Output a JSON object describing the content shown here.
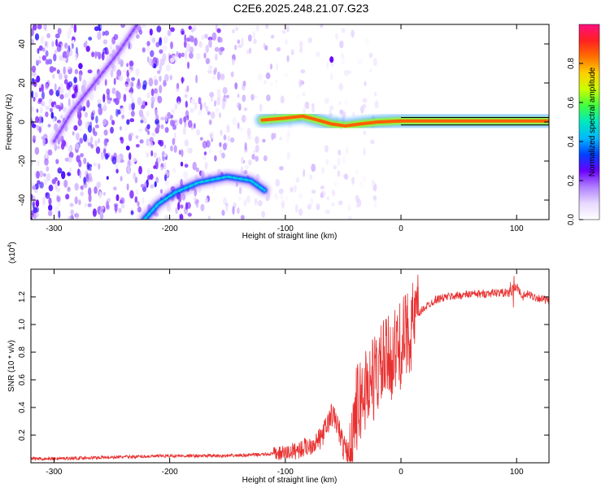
{
  "title": "C2E6.2025.248.21.07.G23",
  "chart_data": [
    {
      "type": "heatmap",
      "xlabel": "Height of straight line (km)",
      "ylabel": "Frequency (Hz)",
      "xlim": [
        -320,
        128
      ],
      "ylim": [
        -50,
        50
      ],
      "x_ticks": [
        -300,
        -200,
        -100,
        0,
        100
      ],
      "y_ticks": [
        -40,
        -20,
        0,
        20,
        40
      ],
      "colorbar": {
        "label": "Normalized spectral amplitude",
        "range": [
          0,
          1
        ],
        "ticks": [
          0.0,
          0.2,
          0.4,
          0.6,
          0.8
        ],
        "colormap": [
          "#ffffff",
          "#e8d8ff",
          "#b080ff",
          "#6a00ff",
          "#0040ff",
          "#00b8ff",
          "#00e8c0",
          "#40ff40",
          "#c8ff00",
          "#ffd000",
          "#ff7000",
          "#ff2020",
          "#ff1080"
        ]
      },
      "features": [
        {
          "kind": "ridge",
          "points": [
            [
              -228,
              50
            ],
            [
              -245,
              35
            ],
            [
              -265,
              20
            ],
            [
              -285,
              5
            ],
            [
              -300,
              -10
            ]
          ],
          "amplitude": 0.2
        },
        {
          "kind": "ridge",
          "points": [
            [
              -222,
              -50
            ],
            [
              -210,
              -42
            ],
            [
              -195,
              -36
            ],
            [
              -175,
              -31
            ],
            [
              -150,
              -28
            ],
            [
              -130,
              -30
            ],
            [
              -118,
              -35
            ]
          ],
          "amplitude": 0.45
        },
        {
          "kind": "ridge",
          "points": [
            [
              -120,
              1
            ],
            [
              -100,
              2
            ],
            [
              -85,
              3
            ],
            [
              -75,
              1.5
            ],
            [
              -60,
              -1
            ],
            [
              -48,
              -2
            ],
            [
              -35,
              -1
            ],
            [
              -20,
              0
            ],
            [
              0,
              0.5
            ],
            [
              128,
              0.5
            ]
          ],
          "amplitude": 0.85
        },
        {
          "kind": "spot",
          "points": [
            [
              -60,
              32
            ]
          ],
          "amplitude": 0.25
        }
      ]
    },
    {
      "type": "line",
      "xlabel": "Height of straight line (km)",
      "ylabel": "SNR (10 * v/v)",
      "y_multiplier": "(x10",
      "y_multiplier_exp": "4",
      "y_multiplier_close": ")",
      "xlim": [
        -320,
        128
      ],
      "ylim": [
        0,
        1.4
      ],
      "x_ticks": [
        -300,
        -200,
        -100,
        0,
        100
      ],
      "y_ticks": [
        0.2,
        0.4,
        0.6,
        0.8,
        1.0,
        1.2
      ],
      "color": "#e83030",
      "series": [
        {
          "x": [
            -320,
            -300,
            -250,
            -200,
            -150,
            -120,
            -100,
            -90,
            -80,
            -70,
            -65,
            -60,
            -55,
            -50,
            -45,
            -40,
            -35,
            -30,
            -25,
            -20,
            -15,
            -10,
            -5,
            0,
            5,
            10,
            15,
            20,
            25,
            30,
            40,
            50,
            60,
            70,
            80,
            90,
            95,
            100,
            105,
            110,
            115,
            120,
            128
          ],
          "y": [
            0.03,
            0.03,
            0.04,
            0.05,
            0.05,
            0.06,
            0.07,
            0.09,
            0.12,
            0.17,
            0.25,
            0.35,
            0.28,
            0.12,
            0.05,
            0.35,
            0.45,
            0.55,
            0.6,
            0.65,
            0.72,
            0.75,
            0.8,
            0.85,
            0.93,
            1.0,
            1.07,
            1.12,
            1.15,
            1.18,
            1.2,
            1.21,
            1.22,
            1.22,
            1.23,
            1.23,
            1.22,
            1.28,
            1.2,
            1.22,
            1.2,
            1.19,
            1.17
          ]
        }
      ]
    }
  ]
}
